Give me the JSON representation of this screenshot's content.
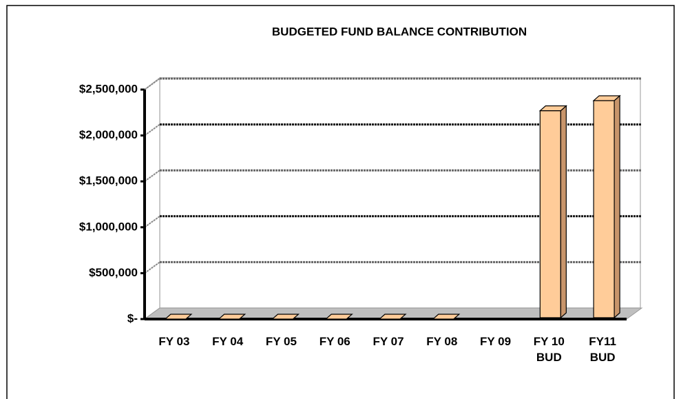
{
  "chart_data": {
    "type": "bar3d",
    "title": "BUDGETED FUND BALANCE  CONTRIBUTION",
    "categories": [
      "FY 03",
      "FY 04",
      "FY 05",
      "FY 06",
      "FY 07",
      "FY 08",
      "FY 09",
      "FY 10\nBUD",
      "FY11\nBUD"
    ],
    "values": [
      0,
      0,
      0,
      0,
      0,
      0,
      null,
      2270000,
      2380000
    ],
    "color": "#ffcc99",
    "ylim": [
      0,
      2500000
    ],
    "yticks": [
      {
        "value": 0,
        "label": "$-"
      },
      {
        "value": 500000,
        "label": "$500,000"
      },
      {
        "value": 1000000,
        "label": "$1,000,000"
      },
      {
        "value": 1500000,
        "label": "$1,500,000"
      },
      {
        "value": 2000000,
        "label": "$2,000,000"
      },
      {
        "value": 2500000,
        "label": "$2,500,000"
      }
    ],
    "grid": true
  }
}
